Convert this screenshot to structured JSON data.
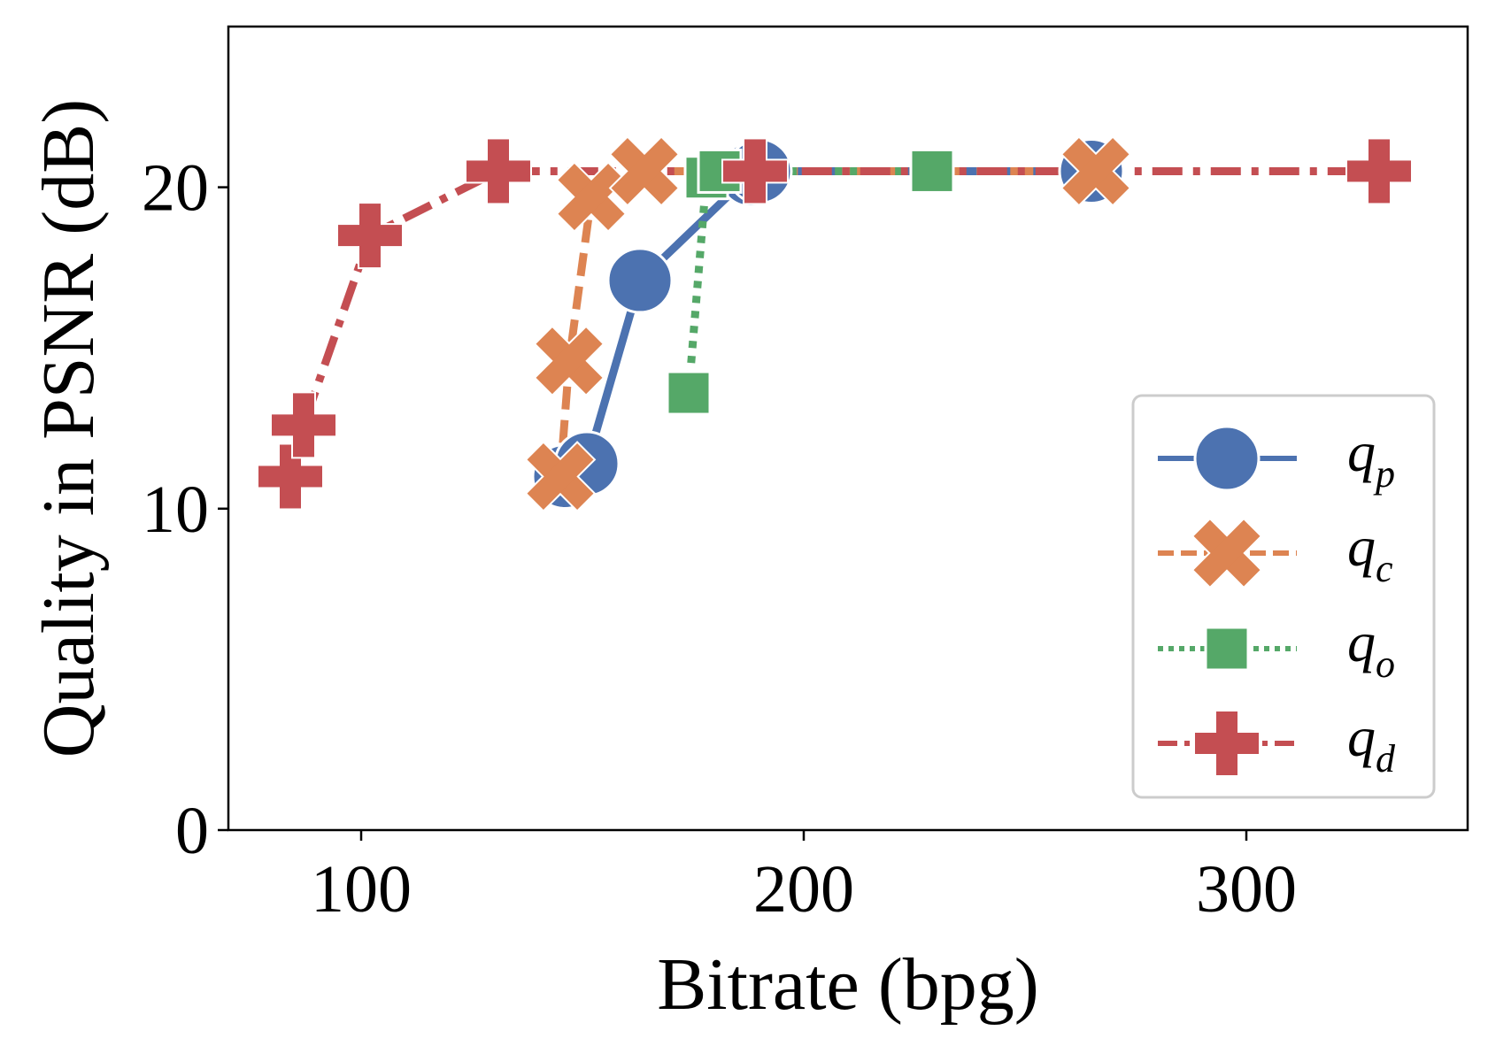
{
  "chart_data": {
    "type": "line",
    "xlabel": "Bitrate (bpg)",
    "ylabel": "Quality in PSNR (dB)",
    "xlim": [
      70,
      350
    ],
    "ylim": [
      0,
      25
    ],
    "xticks": [
      100,
      200,
      300
    ],
    "yticks": [
      0,
      10,
      20
    ],
    "xtick_labels": [
      "100",
      "200",
      "300"
    ],
    "ytick_labels": [
      "0",
      "10",
      "20"
    ],
    "grid": false,
    "legend_position": "lower-right",
    "series": [
      {
        "name": "q_p",
        "label_main": "q",
        "label_sub": "p",
        "color": "#4c72b0",
        "marker": "circle",
        "dash": "solid",
        "x": [
          146,
          151,
          163,
          188,
          190,
          265
        ],
        "y": [
          11.0,
          11.4,
          17.1,
          20.4,
          20.5,
          20.5
        ]
      },
      {
        "name": "q_c",
        "label_main": "q",
        "label_sub": "c",
        "color": "#dd8452",
        "marker": "x",
        "dash": "dashed",
        "x": [
          145,
          147,
          152,
          164,
          266
        ],
        "y": [
          11.0,
          14.6,
          19.7,
          20.5,
          20.5
        ]
      },
      {
        "name": "q_o",
        "label_main": "q",
        "label_sub": "o",
        "color": "#55a868",
        "marker": "square",
        "dash": "dotted",
        "x": [
          174,
          178,
          181,
          229
        ],
        "y": [
          13.6,
          20.3,
          20.5,
          20.5
        ]
      },
      {
        "name": "q_d",
        "label_main": "q",
        "label_sub": "d",
        "color": "#c44e52",
        "marker": "plus",
        "dash": "dashdot",
        "x": [
          84,
          87,
          102,
          131,
          189,
          330
        ],
        "y": [
          11.0,
          12.6,
          18.5,
          20.5,
          20.5,
          20.5
        ]
      }
    ]
  }
}
